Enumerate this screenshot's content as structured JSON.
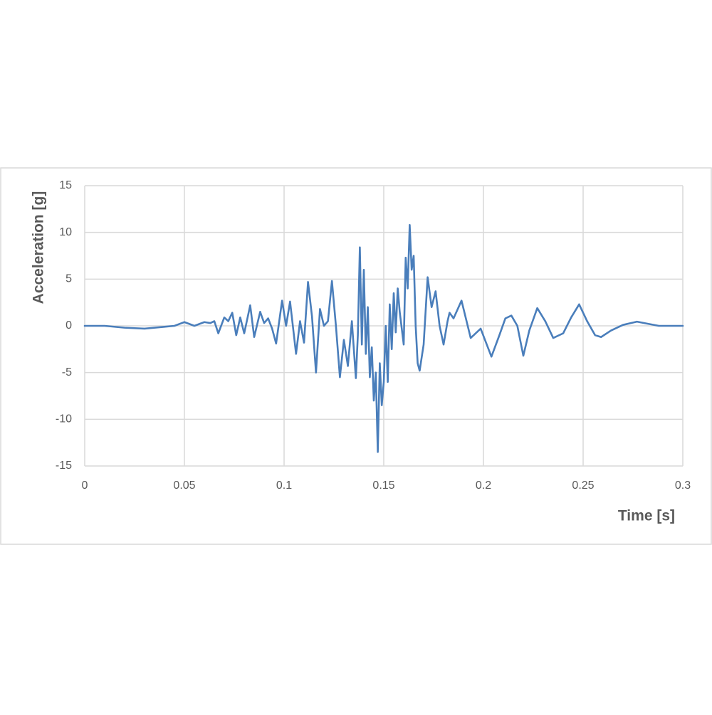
{
  "chart_data": {
    "type": "line",
    "xlabel": "Time [s]",
    "ylabel": "Acceleration [g]",
    "xlim": [
      0,
      0.3
    ],
    "xticks": [
      0,
      0.05,
      0.1,
      0.15,
      0.2,
      0.25,
      0.3
    ],
    "ylim": [
      -15,
      15
    ],
    "yticks": [
      -15,
      -10,
      -5,
      0,
      5,
      10,
      15
    ],
    "grid": true,
    "series": [
      {
        "color": "#4a7ebb",
        "x": [
          0,
          0.01,
          0.02,
          0.03,
          0.04,
          0.045,
          0.05,
          0.055,
          0.06,
          0.063,
          0.065,
          0.067,
          0.07,
          0.072,
          0.074,
          0.076,
          0.078,
          0.08,
          0.083,
          0.085,
          0.088,
          0.09,
          0.092,
          0.094,
          0.096,
          0.099,
          0.101,
          0.103,
          0.106,
          0.108,
          0.11,
          0.112,
          0.114,
          0.116,
          0.118,
          0.12,
          0.122,
          0.124,
          0.126,
          0.128,
          0.13,
          0.132,
          0.134,
          0.136,
          0.137,
          0.138,
          0.139,
          0.14,
          0.141,
          0.142,
          0.143,
          0.144,
          0.145,
          0.146,
          0.147,
          0.148,
          0.149,
          0.15,
          0.151,
          0.152,
          0.153,
          0.154,
          0.155,
          0.156,
          0.157,
          0.158,
          0.16,
          0.161,
          0.162,
          0.163,
          0.164,
          0.165,
          0.166,
          0.167,
          0.168,
          0.17,
          0.172,
          0.174,
          0.176,
          0.178,
          0.18,
          0.182,
          0.183,
          0.185,
          0.189,
          0.1936,
          0.1986,
          0.204,
          0.208,
          0.211,
          0.214,
          0.217,
          0.22,
          0.223,
          0.227,
          0.231,
          0.235,
          0.24,
          0.244,
          0.248,
          0.252,
          0.256,
          0.259,
          0.264,
          0.27,
          0.277,
          0.283,
          0.288,
          0.3
        ],
        "values": [
          0,
          0,
          -0.2,
          -0.3,
          -0.1,
          0,
          0.4,
          0,
          0.4,
          0.3,
          0.5,
          -0.8,
          0.9,
          0.5,
          1.4,
          -1.0,
          0.9,
          -0.8,
          2.2,
          -1.2,
          1.5,
          0.3,
          0.8,
          -0.3,
          -1.9,
          2.7,
          0.0,
          2.6,
          -3.0,
          0.5,
          -1.8,
          4.7,
          1.0,
          -5.0,
          1.8,
          0,
          0.5,
          4.8,
          0,
          -5.5,
          -1.5,
          -4.3,
          0.5,
          -5.6,
          -1.0,
          8.4,
          -2,
          6.0,
          -3,
          2,
          -5.5,
          -2.3,
          -8,
          -5,
          -13.5,
          -4,
          -8.5,
          -6,
          0,
          -6,
          2.3,
          -2.5,
          3.5,
          -0.7,
          4,
          1.5,
          -2,
          7.3,
          4,
          10.8,
          6,
          7.5,
          0,
          -4,
          -4.8,
          -2.0,
          5.2,
          2,
          3.7,
          0,
          -2,
          0.5,
          1.4,
          0.8,
          2.7,
          -1.3,
          -0.3,
          -3.3,
          -1.0,
          0.8,
          1.1,
          0,
          -3.2,
          -0.5,
          1.9,
          0.5,
          -1.3,
          -0.8,
          0.9,
          2.3,
          0.5,
          -1.0,
          -1.2,
          -0.5,
          0.1,
          0.45,
          0.2,
          0,
          0
        ]
      }
    ]
  }
}
